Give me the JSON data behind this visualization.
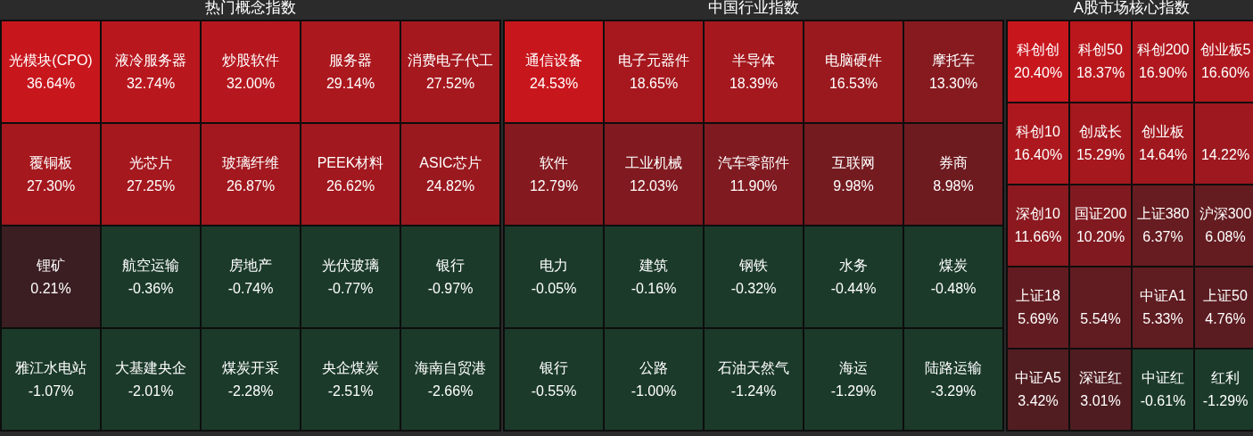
{
  "chart_data": [
    {
      "type": "other",
      "title": "热门概念指数",
      "categories": [
        "光模块(CPO)",
        "液冷服务器",
        "炒股软件",
        "服务器",
        "消费电子代工",
        "覆铜板",
        "光芯片",
        "玻璃纤维",
        "PEEK材料",
        "ASIC芯片",
        "锂矿",
        "航空运输",
        "房地产",
        "光伏玻璃",
        "银行",
        "雅江水电站",
        "大基建央企",
        "煤炭开采",
        "央企煤炭",
        "海南自贸港"
      ],
      "values": [
        36.64,
        32.74,
        32.0,
        29.14,
        27.52,
        27.3,
        27.25,
        26.87,
        26.62,
        24.82,
        0.21,
        -0.36,
        -0.74,
        -0.77,
        -0.97,
        -1.07,
        -2.01,
        -2.28,
        -2.51,
        -2.66
      ],
      "value_labels": [
        "36.64%",
        "32.74%",
        "32.00%",
        "29.14%",
        "27.52%",
        "27.30%",
        "27.25%",
        "26.87%",
        "26.62%",
        "24.82%",
        "0.21%",
        "-0.36%",
        "-0.74%",
        "-0.77%",
        "-0.97%",
        "-1.07%",
        "-2.01%",
        "-2.28%",
        "-2.51%",
        "-2.66%"
      ]
    },
    {
      "type": "other",
      "title": "中国行业指数",
      "categories": [
        "通信设备",
        "电子元器件",
        "半导体",
        "电脑硬件",
        "摩托车",
        "软件",
        "工业机械",
        "汽车零部件",
        "互联网",
        "券商",
        "电力",
        "建筑",
        "钢铁",
        "水务",
        "煤炭",
        "银行",
        "公路",
        "石油天然气",
        "海运",
        "陆路运输"
      ],
      "values": [
        24.53,
        18.65,
        18.39,
        16.53,
        13.3,
        12.79,
        12.03,
        11.9,
        9.98,
        8.98,
        -0.05,
        -0.16,
        -0.32,
        -0.44,
        -0.48,
        -0.55,
        -1.0,
        -1.24,
        -1.29,
        -3.29
      ],
      "value_labels": [
        "24.53%",
        "18.65%",
        "18.39%",
        "16.53%",
        "13.30%",
        "12.79%",
        "12.03%",
        "11.90%",
        "9.98%",
        "8.98%",
        "-0.05%",
        "-0.16%",
        "-0.32%",
        "-0.44%",
        "-0.48%",
        "-0.55%",
        "-1.00%",
        "-1.24%",
        "-1.29%",
        "-3.29%"
      ]
    },
    {
      "type": "other",
      "title": "A股市场核心指数",
      "categories": [
        "科创创",
        "科创50",
        "科创200",
        "创业板5",
        "科创10",
        "创成长",
        "创业板",
        null,
        "深创10",
        "国证200",
        "上证380",
        "沪深300",
        "上证18",
        null,
        "中证A1",
        "上证50",
        "中证A5",
        "深证红",
        "中证红",
        "红利"
      ],
      "values": [
        20.4,
        18.37,
        16.9,
        16.6,
        16.4,
        15.29,
        14.64,
        14.22,
        11.66,
        10.2,
        6.37,
        6.08,
        5.69,
        5.54,
        5.33,
        4.76,
        3.42,
        3.01,
        -0.61,
        -1.29
      ],
      "value_labels": [
        "20.40%",
        "18.37%",
        "16.90%",
        "16.60%",
        "16.40%",
        "15.29%",
        "14.64%",
        "14.22%",
        "11.66%",
        "10.20%",
        "6.37%",
        "6.08%",
        "5.69%",
        "5.54%",
        "5.33%",
        "4.76%",
        "3.42%",
        "3.01%",
        "-0.61%",
        "-1.29%"
      ]
    }
  ]
}
